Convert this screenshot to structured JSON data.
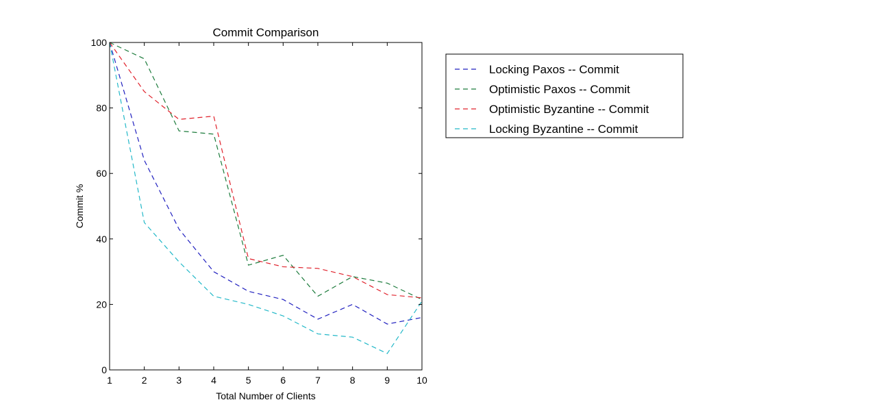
{
  "chart_data": {
    "type": "line",
    "title": "Commit Comparison",
    "xlabel": "Total Number of Clients",
    "ylabel": "Commit %",
    "xlim": [
      1,
      10
    ],
    "ylim": [
      0,
      100
    ],
    "xticks": [
      "1",
      "2",
      "3",
      "4",
      "5",
      "6",
      "7",
      "8",
      "9",
      "10"
    ],
    "yticks": [
      "0",
      "20",
      "40",
      "60",
      "80",
      "100"
    ],
    "x": [
      1,
      2,
      3,
      4,
      5,
      6,
      7,
      8,
      9,
      10
    ],
    "legend_position": "outside-right-top",
    "grid": false,
    "line_style": "dashed",
    "series": [
      {
        "name": "Locking Paxos -- Commit",
        "color": "#1f1fbf",
        "values": [
          100,
          64,
          43,
          30,
          24,
          21.5,
          15.5,
          20,
          14,
          16
        ]
      },
      {
        "name": "Optimistic Paxos -- Commit",
        "color": "#1a7a3a",
        "values": [
          100,
          95,
          73,
          72,
          32,
          35,
          22.5,
          28.5,
          26.5,
          21.5
        ]
      },
      {
        "name": "Optimistic Byzantine -- Commit",
        "color": "#e0202a",
        "values": [
          100,
          85,
          76.5,
          77.5,
          34,
          31.5,
          31,
          28.5,
          23,
          22
        ]
      },
      {
        "name": "Locking Byzantine -- Commit",
        "color": "#22b8c8",
        "values": [
          100,
          45,
          33,
          22.5,
          20,
          16.5,
          11,
          10,
          5,
          21
        ]
      }
    ]
  }
}
